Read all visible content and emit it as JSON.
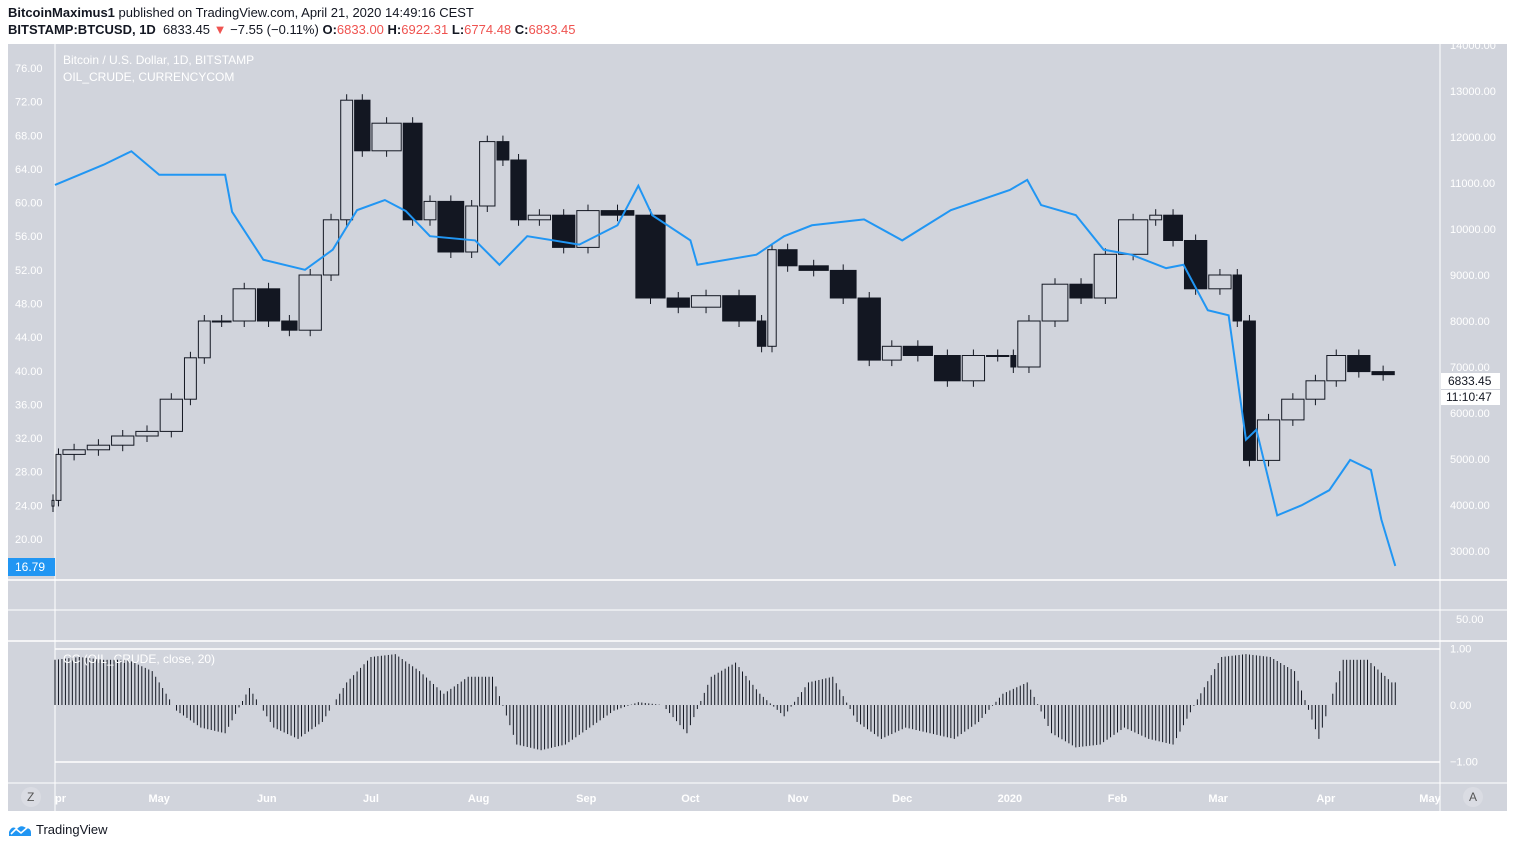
{
  "header": {
    "author": "BitcoinMaximus1",
    "published": "published on TradingView.com, April 21, 2020 14:49:16 CEST",
    "symbol": "BITSTAMP:BTCUSD, 1D",
    "last": "6833.45",
    "change": "−7.55 (−0.11%)",
    "o_label": "O:",
    "o": "6833.00",
    "h_label": "H:",
    "h": "6922.31",
    "l_label": "L:",
    "l": "6774.48",
    "c_label": "C:",
    "c": "6833.45"
  },
  "legend": {
    "main": "Bitcoin / U.S. Dollar, 1D, BITSTAMP",
    "overlay": "OIL_CRUDE, CURRENCYCOM",
    "indicator": "CC (OIL_CRUDE, close, 20)"
  },
  "footer": {
    "brand": "TradingView"
  },
  "colors": {
    "background": "#d1d4dc",
    "oil": "#2196f3",
    "candle": "#131722",
    "grid": "#ffffff",
    "axis_text": "#ffffff",
    "down": "#ef5350"
  },
  "chart_data": {
    "type": "candlestick+line+histogram",
    "x_ticks": [
      "pr",
      "May",
      "Jun",
      "Jul",
      "Aug",
      "Sep",
      "Oct",
      "Nov",
      "Dec",
      "2020",
      "Feb",
      "Mar",
      "Apr",
      "May"
    ],
    "x_tick_dates": [
      "2019-04-01",
      "2019-05-01",
      "2019-06-01",
      "2019-07-01",
      "2019-08-01",
      "2019-09-01",
      "2019-10-01",
      "2019-11-01",
      "2019-12-01",
      "2020-01-01",
      "2020-02-01",
      "2020-03-01",
      "2020-04-01",
      "2020-05-01"
    ],
    "btc": {
      "axis": "right",
      "ylim": [
        2500,
        14000
      ],
      "ticks": [
        "14000.00",
        "13000.00",
        "12000.00",
        "11000.00",
        "10000.00",
        "9000.00",
        "8000.00",
        "7000.00",
        "6000.00",
        "5000.00",
        "4000.00",
        "3000.00"
      ],
      "last_label": "6833.45",
      "countdown": "11:10:47",
      "dates": [
        "2019-04-01",
        "2019-04-03",
        "2019-04-10",
        "2019-04-17",
        "2019-04-24",
        "2019-05-01",
        "2019-05-08",
        "2019-05-12",
        "2019-05-16",
        "2019-05-22",
        "2019-05-29",
        "2019-06-05",
        "2019-06-10",
        "2019-06-17",
        "2019-06-22",
        "2019-06-26",
        "2019-07-01",
        "2019-07-10",
        "2019-07-16",
        "2019-07-20",
        "2019-07-28",
        "2019-08-01",
        "2019-08-06",
        "2019-08-10",
        "2019-08-15",
        "2019-08-22",
        "2019-08-29",
        "2019-09-05",
        "2019-09-15",
        "2019-09-24",
        "2019-10-01",
        "2019-10-10",
        "2019-10-20",
        "2019-10-23",
        "2019-10-26",
        "2019-11-01",
        "2019-11-10",
        "2019-11-18",
        "2019-11-25",
        "2019-12-01",
        "2019-12-10",
        "2019-12-18",
        "2019-12-25",
        "2020-01-01",
        "2020-01-03",
        "2020-01-10",
        "2020-01-18",
        "2020-01-25",
        "2020-02-01",
        "2020-02-10",
        "2020-02-14",
        "2020-02-20",
        "2020-02-27",
        "2020-03-05",
        "2020-03-08",
        "2020-03-12",
        "2020-03-19",
        "2020-03-26",
        "2020-04-01",
        "2020-04-07",
        "2020-04-14",
        "2020-04-21"
      ],
      "close": [
        4100,
        5100,
        5200,
        5300,
        5500,
        5600,
        6300,
        7200,
        8000,
        8000,
        8700,
        8000,
        7800,
        9000,
        10200,
        12800,
        11700,
        12300,
        10200,
        10600,
        9500,
        10500,
        11900,
        11500,
        10200,
        10300,
        9600,
        10400,
        10300,
        8500,
        8300,
        8550,
        8000,
        7450,
        9550,
        9200,
        9100,
        8500,
        7150,
        7450,
        7250,
        6700,
        7250,
        7250,
        7000,
        8000,
        8800,
        8500,
        9450,
        10200,
        10300,
        9750,
        8700,
        9000,
        8000,
        4970,
        5850,
        6300,
        6700,
        7250,
        6900,
        6833.45
      ]
    },
    "oil": {
      "axis": "left",
      "ylim": [
        16,
        78
      ],
      "ticks": [
        "76.00",
        "72.00",
        "68.00",
        "64.00",
        "60.00",
        "56.00",
        "52.00",
        "48.00",
        "44.00",
        "40.00",
        "36.00",
        "32.00",
        "28.00",
        "24.00",
        "20.00"
      ],
      "last_label": "16.79",
      "dates": [
        "2019-04-01",
        "2019-04-15",
        "2019-04-23",
        "2019-05-01",
        "2019-05-20",
        "2019-05-22",
        "2019-05-31",
        "2019-06-12",
        "2019-06-20",
        "2019-06-27",
        "2019-07-05",
        "2019-07-11",
        "2019-07-18",
        "2019-07-31",
        "2019-08-07",
        "2019-08-15",
        "2019-08-30",
        "2019-09-10",
        "2019-09-16",
        "2019-09-20",
        "2019-10-01",
        "2019-10-03",
        "2019-10-20",
        "2019-10-28",
        "2019-11-05",
        "2019-11-20",
        "2019-12-01",
        "2019-12-15",
        "2020-01-01",
        "2020-01-06",
        "2020-01-10",
        "2020-01-20",
        "2020-01-28",
        "2020-02-05",
        "2020-02-15",
        "2020-02-20",
        "2020-02-27",
        "2020-03-04",
        "2020-03-09",
        "2020-03-12",
        "2020-03-18",
        "2020-03-25",
        "2020-04-02",
        "2020-04-08",
        "2020-04-14",
        "2020-04-17",
        "2020-04-21"
      ],
      "values": [
        62.1,
        64.5,
        66.1,
        63.3,
        63.3,
        58.9,
        53.2,
        52.0,
        54.4,
        59.1,
        60.3,
        59.0,
        56.0,
        55.5,
        52.6,
        56.0,
        55.0,
        57.3,
        62.0,
        58.5,
        55.5,
        52.6,
        53.8,
        56.0,
        57.3,
        58.0,
        55.5,
        59.1,
        61.5,
        62.7,
        59.7,
        58.5,
        54.4,
        53.8,
        52.2,
        52.6,
        47.2,
        46.6,
        31.8,
        33.0,
        22.8,
        24.0,
        25.8,
        29.4,
        28.2,
        22.3,
        16.79
      ]
    },
    "empty_pane": {
      "ticks": [
        "50.00"
      ]
    },
    "cc": {
      "ylim": [
        -1.1,
        1.1
      ],
      "ticks": [
        "1.00",
        "0.00",
        "−1.00"
      ],
      "start": "2019-04-01",
      "weekly_values": [
        0.8,
        0.85,
        0.8,
        0.8,
        0.6,
        -0.1,
        -0.4,
        -0.5,
        0.3,
        -0.4,
        -0.6,
        -0.3,
        0.4,
        0.85,
        0.9,
        0.6,
        0.2,
        0.5,
        0.5,
        -0.7,
        -0.8,
        -0.7,
        -0.4,
        -0.1,
        0.05,
        0.0,
        -0.5,
        0.5,
        0.75,
        0.2,
        -0.2,
        0.4,
        0.5,
        -0.3,
        -0.6,
        -0.4,
        -0.5,
        -0.6,
        -0.3,
        0.2,
        0.4,
        -0.5,
        -0.75,
        -0.7,
        -0.4,
        -0.6,
        -0.7,
        0.1,
        0.85,
        0.9,
        0.85,
        0.6,
        -0.6,
        0.8,
        0.8,
        0.4
      ]
    },
    "buttons": {
      "left": "Z",
      "right": "A"
    }
  }
}
